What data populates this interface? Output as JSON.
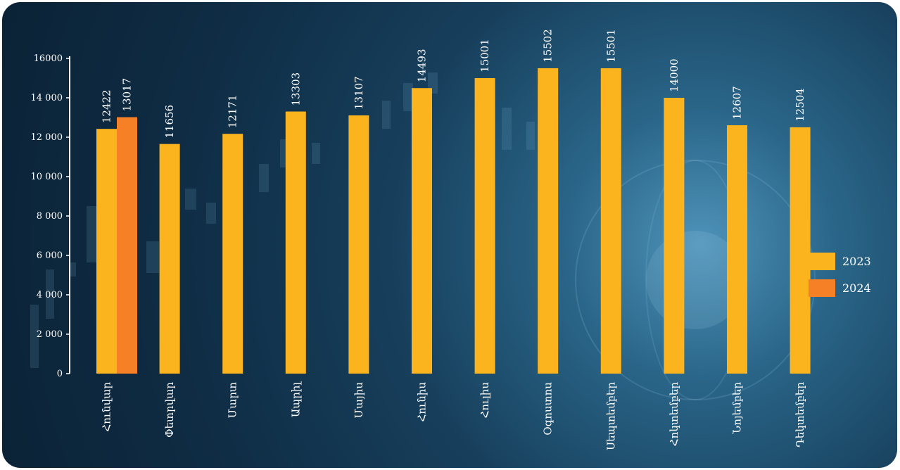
{
  "colors": {
    "series_2023": "#fbb41d",
    "series_2024": "#f58025",
    "text": "#ffffff"
  },
  "chart_data": {
    "type": "bar",
    "title": "",
    "xlabel": "",
    "ylabel": "",
    "ylim": [
      0,
      16000
    ],
    "yticks": [
      "0",
      "2 000",
      "4 000",
      "6 000",
      "8 000",
      "10 000",
      "12 000",
      "14 000",
      "16000"
    ],
    "grid": false,
    "legend_position": "right",
    "categories": [
      "Հունվար",
      "Փետրվար",
      "Մարտ",
      "Ապրիլ",
      "Մայիս",
      "Հունիս",
      "Հուլիս",
      "Օգոստոս",
      "Սեպտեմբեր",
      "Հոկտեմբեր",
      "Նոյեմբեր",
      "Դեկտեմբեր"
    ],
    "series": [
      {
        "name": "2023",
        "values": [
          12422,
          11656,
          12171,
          13303,
          13107,
          14493,
          15001,
          15502,
          15501,
          14000,
          12607,
          12504
        ],
        "labels": [
          "12422",
          "11656",
          "12171",
          "13303",
          "13107",
          "14493",
          "15001",
          "15502",
          "15501",
          "14000",
          "12607",
          "12504"
        ]
      },
      {
        "name": "2024",
        "values": [
          13017,
          null,
          null,
          null,
          null,
          null,
          null,
          null,
          null,
          null,
          null,
          null
        ],
        "labels": [
          "13017",
          "",
          "",
          "",
          "",
          "",
          "",
          "",
          "",
          "",
          "",
          ""
        ]
      }
    ]
  }
}
